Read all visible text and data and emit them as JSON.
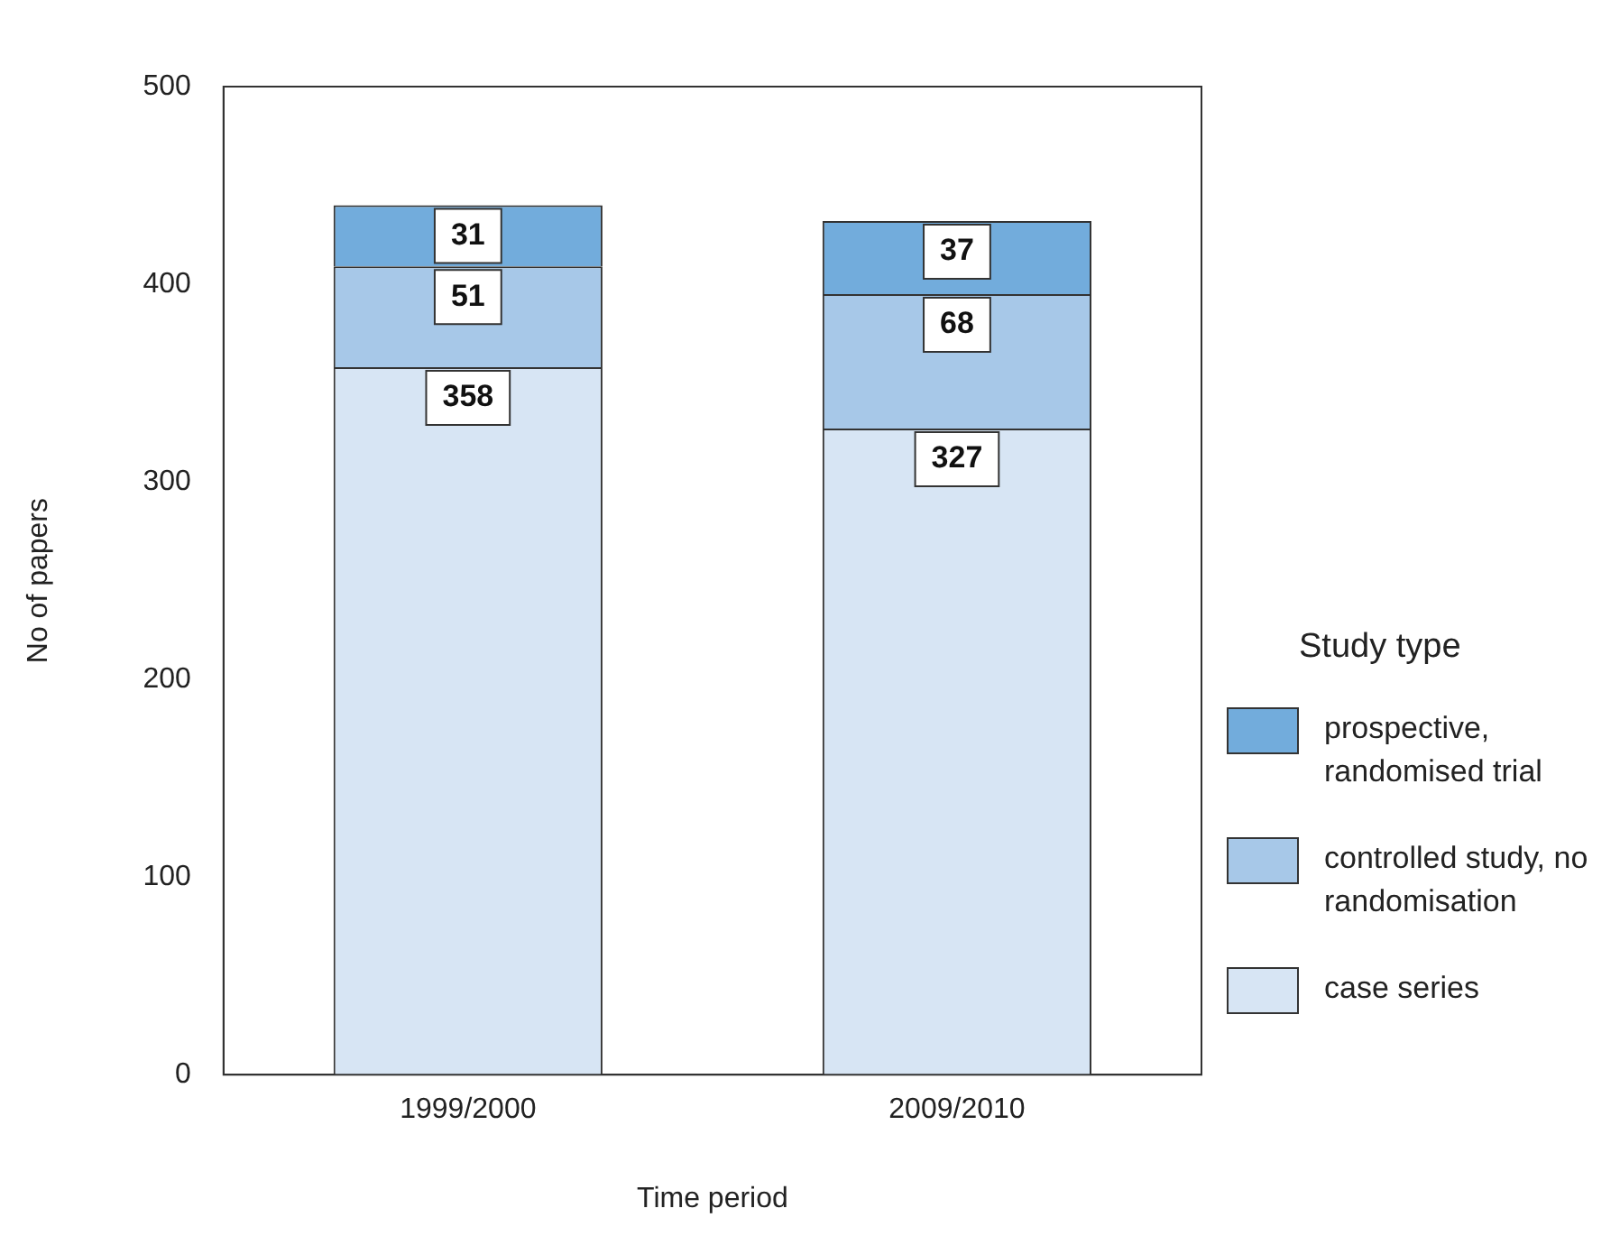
{
  "chart_data": {
    "type": "bar",
    "stacked": true,
    "xlabel": "Time period",
    "ylabel": "No of papers",
    "legend_title": "Study type",
    "legend": "right",
    "data_labels": true,
    "categories": [
      "1999/2000",
      "2009/2010"
    ],
    "ylim": [
      0,
      500
    ],
    "yticks": [
      0,
      100,
      200,
      300,
      400,
      500
    ],
    "grid": false,
    "series": [
      {
        "name": "case series",
        "color": "#d7e5f4",
        "values": [
          358,
          327
        ]
      },
      {
        "name": "controlled study, no randomisation",
        "color": "#a7c8e8",
        "values": [
          51,
          68
        ]
      },
      {
        "name": "prospective, randomised trial",
        "color": "#72acdc",
        "values": [
          31,
          37
        ]
      }
    ]
  }
}
